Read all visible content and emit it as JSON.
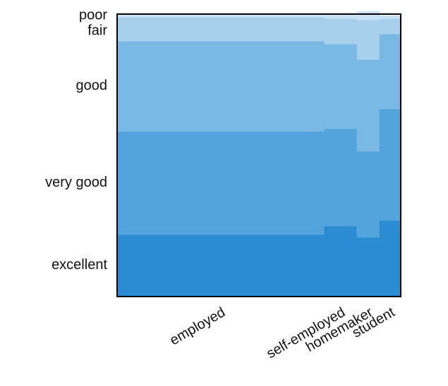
{
  "chart_data": {
    "type": "mosaic",
    "categories": [
      "employed",
      "self-employed",
      "homemaker",
      "student"
    ],
    "category_widths": [
      0.73,
      0.115,
      0.08,
      0.075
    ],
    "health_levels": [
      "excellent",
      "very good",
      "good",
      "fair",
      "poor"
    ],
    "series": [
      {
        "name": "excellent",
        "values": [
          0.22,
          0.25,
          0.21,
          0.27
        ]
      },
      {
        "name": "very good",
        "values": [
          0.365,
          0.345,
          0.305,
          0.395
        ]
      },
      {
        "name": "good",
        "values": [
          0.32,
          0.3,
          0.325,
          0.265
        ]
      },
      {
        "name": "fair",
        "values": [
          0.085,
          0.09,
          0.14,
          0.055
        ]
      },
      {
        "name": "poor",
        "values": [
          0.01,
          0.015,
          0.03,
          0.01
        ]
      }
    ],
    "colors": [
      "#2b8cd3",
      "#53a3dd",
      "#7ab9e4",
      "#a8d0ec",
      "#c9e2f4"
    ],
    "frame_color": "#000000",
    "grid": false
  }
}
